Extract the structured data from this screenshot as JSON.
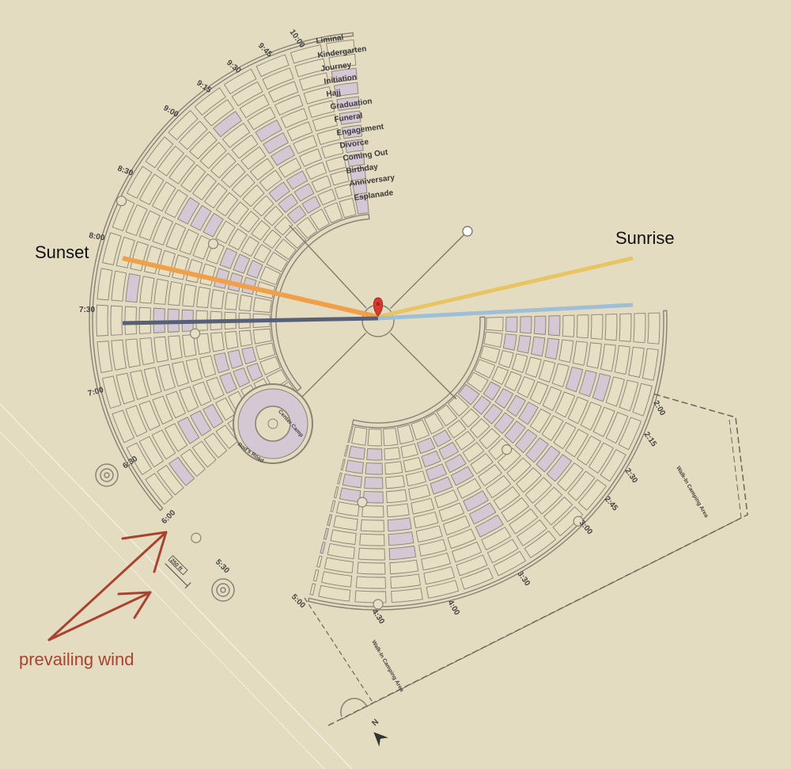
{
  "labels": {
    "sunset": "Sunset",
    "sunrise": "Sunrise",
    "prevailing_wind": "prevailing wind",
    "center_camp": "Center Camp",
    "rods_road": "Rod's Road",
    "walk_in_east": "Walk-In Camping Area",
    "walk_in_south": "Walk-In Camping Area",
    "scale_text": "250 ft",
    "north": "N"
  },
  "streets": [
    "Liminal",
    "Kindergarten",
    "Journey",
    "Initiation",
    "Hajj",
    "Graduation",
    "Funeral",
    "Engagement",
    "Divorce",
    "Coming Out",
    "Birthday",
    "Anniversary",
    "Esplanade"
  ],
  "upper_clock_times": [
    "10:00",
    "9:45",
    "9:30",
    "9:15",
    "9:00",
    "8:30",
    "8:00",
    "7:30",
    "7:00",
    "6:30",
    "6:00"
  ],
  "lower_clock_times": [
    "5:30",
    "5:00",
    "4:30",
    "4:00",
    "3:30",
    "3:00",
    "2:45",
    "2:30",
    "2:15",
    "2:00"
  ],
  "colors": {
    "background": "#e3dcc0",
    "block_fill": "#e6dfc4",
    "block_highlight": "#d3c8d4",
    "outline": "#8a8276",
    "sunset_line": "#f0a04a",
    "sunrise_line": "#e8c562",
    "dusk_line": "#566078",
    "dawn_line": "#9fbfd6",
    "wind_arrow": "#a9432f",
    "pin": "#d83a2e"
  }
}
